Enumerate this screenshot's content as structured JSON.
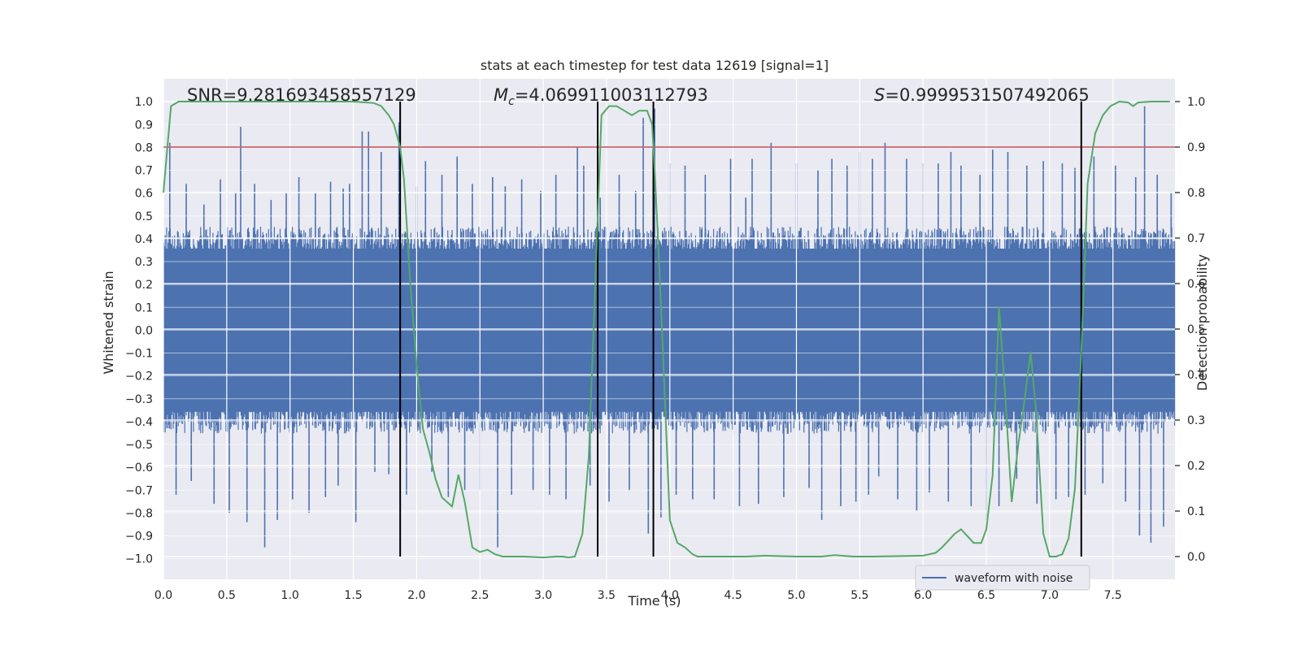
{
  "chart_data": {
    "type": "line",
    "title": "stats at each timestep for test data 12619 [signal=1]",
    "xlabel": "Time (s)",
    "ylabel_left": "Whitened strain",
    "ylabel_right": "Detection probability",
    "xlim": [
      0.0,
      7.99
    ],
    "ylim_left": [
      -1.09,
      1.1
    ],
    "ylim_right": [
      -0.05,
      1.05
    ],
    "grid": true,
    "x_ticks": [
      "0.0",
      "0.5",
      "1.0",
      "1.5",
      "2.0",
      "2.5",
      "3.0",
      "3.5",
      "4.0",
      "4.5",
      "5.0",
      "5.5",
      "6.0",
      "6.5",
      "7.0",
      "7.5"
    ],
    "y_ticks_left": [
      "-1.0",
      "-0.9",
      "-0.8",
      "-0.7",
      "-0.6",
      "-0.5",
      "-0.4",
      "-0.3",
      "-0.2",
      "-0.1",
      "0.0",
      "0.1",
      "0.2",
      "0.3",
      "0.4",
      "0.5",
      "0.6",
      "0.7",
      "0.8",
      "0.9",
      "1.0"
    ],
    "y_ticks_right": [
      "0.0",
      "0.1",
      "0.2",
      "0.3",
      "0.4",
      "0.5",
      "0.6",
      "0.7",
      "0.8",
      "0.9",
      "1.0"
    ],
    "annotations": {
      "snr": "SNR=9.281693458557129",
      "mc_symbol": "M",
      "mc_subscript": "c",
      "mc_value": "=4.069911003112793",
      "s_symbol": "S",
      "s_value": "=0.9999531507492065"
    },
    "legend": {
      "label": "waveform with noise",
      "position": "lower-right"
    },
    "threshold": {
      "value": 0.9,
      "axis": "right",
      "color": "#c44e52"
    },
    "vertical_lines": [
      1.87,
      3.43,
      3.87,
      7.25
    ],
    "waveform": {
      "name": "waveform with noise",
      "color": "#4c72b0",
      "core_amplitude": 0.42,
      "spikes": [
        [
          0.05,
          0.82
        ],
        [
          0.1,
          -0.72
        ],
        [
          0.18,
          0.64
        ],
        [
          0.22,
          -0.66
        ],
        [
          0.32,
          0.55
        ],
        [
          0.4,
          -0.76
        ],
        [
          0.45,
          0.66
        ],
        [
          0.52,
          -0.8
        ],
        [
          0.57,
          0.6
        ],
        [
          0.61,
          0.89
        ],
        [
          0.66,
          -0.84
        ],
        [
          0.72,
          0.64
        ],
        [
          0.8,
          -0.95
        ],
        [
          0.85,
          0.57
        ],
        [
          0.9,
          -0.83
        ],
        [
          0.97,
          0.6
        ],
        [
          1.02,
          -0.74
        ],
        [
          1.07,
          0.67
        ],
        [
          1.15,
          -0.8
        ],
        [
          1.2,
          0.6
        ],
        [
          1.28,
          -0.73
        ],
        [
          1.32,
          0.65
        ],
        [
          1.38,
          -0.68
        ],
        [
          1.42,
          0.62
        ],
        [
          1.47,
          0.64
        ],
        [
          1.52,
          -0.84
        ],
        [
          1.57,
          0.87
        ],
        [
          1.62,
          0.87
        ],
        [
          1.67,
          -0.62
        ],
        [
          1.72,
          0.78
        ],
        [
          1.78,
          -0.63
        ],
        [
          1.86,
          0.91
        ],
        [
          1.92,
          -0.72
        ],
        [
          2.0,
          0.63
        ],
        [
          2.07,
          0.74
        ],
        [
          2.12,
          -0.62
        ],
        [
          2.2,
          0.68
        ],
        [
          2.25,
          -0.73
        ],
        [
          2.32,
          0.76
        ],
        [
          2.38,
          -0.7
        ],
        [
          2.44,
          0.64
        ],
        [
          2.5,
          -0.7
        ],
        [
          2.6,
          0.67
        ],
        [
          2.64,
          -0.95
        ],
        [
          2.7,
          0.63
        ],
        [
          2.75,
          -0.72
        ],
        [
          2.83,
          0.66
        ],
        [
          2.92,
          -0.7
        ],
        [
          2.98,
          0.61
        ],
        [
          3.05,
          -0.72
        ],
        [
          3.1,
          0.68
        ],
        [
          3.18,
          -0.74
        ],
        [
          3.27,
          0.8
        ],
        [
          3.32,
          0.72
        ],
        [
          3.37,
          -0.68
        ],
        [
          3.45,
          0.58
        ],
        [
          3.52,
          -0.75
        ],
        [
          3.6,
          0.68
        ],
        [
          3.68,
          -0.7
        ],
        [
          3.73,
          0.61
        ],
        [
          3.79,
          0.93
        ],
        [
          3.83,
          -0.89
        ],
        [
          3.88,
          0.97
        ],
        [
          3.93,
          -0.82
        ],
        [
          4.0,
          0.73
        ],
        [
          4.05,
          -0.72
        ],
        [
          4.12,
          0.72
        ],
        [
          4.18,
          -0.74
        ],
        [
          4.28,
          0.68
        ],
        [
          4.35,
          -0.74
        ],
        [
          4.48,
          0.75
        ],
        [
          4.55,
          -0.77
        ],
        [
          4.6,
          0.58
        ],
        [
          4.65,
          0.75
        ],
        [
          4.7,
          -0.76
        ],
        [
          4.8,
          0.82
        ],
        [
          4.9,
          -0.73
        ],
        [
          5.0,
          0.73
        ],
        [
          5.1,
          -0.69
        ],
        [
          5.17,
          0.7
        ],
        [
          5.2,
          -0.83
        ],
        [
          5.28,
          0.75
        ],
        [
          5.35,
          -0.77
        ],
        [
          5.4,
          0.72
        ],
        [
          5.47,
          -0.75
        ],
        [
          5.5,
          0.78
        ],
        [
          5.57,
          -0.72
        ],
        [
          5.6,
          0.75
        ],
        [
          5.65,
          -0.64
        ],
        [
          5.7,
          0.82
        ],
        [
          5.8,
          -0.74
        ],
        [
          5.87,
          0.75
        ],
        [
          5.95,
          -0.79
        ],
        [
          6.0,
          0.73
        ],
        [
          6.05,
          -0.71
        ],
        [
          6.12,
          0.73
        ],
        [
          6.2,
          -0.75
        ],
        [
          6.22,
          0.78
        ],
        [
          6.3,
          0.72
        ],
        [
          6.38,
          -0.77
        ],
        [
          6.45,
          0.68
        ],
        [
          6.5,
          -0.83
        ],
        [
          6.55,
          0.79
        ],
        [
          6.6,
          -0.77
        ],
        [
          6.67,
          0.78
        ],
        [
          6.74,
          -0.65
        ],
        [
          6.82,
          0.72
        ],
        [
          6.9,
          -0.76
        ],
        [
          6.95,
          0.74
        ],
        [
          7.05,
          -0.74
        ],
        [
          7.1,
          0.73
        ],
        [
          7.15,
          -0.73
        ],
        [
          7.2,
          0.71
        ],
        [
          7.28,
          -0.72
        ],
        [
          7.35,
          0.76
        ],
        [
          7.42,
          -0.67
        ],
        [
          7.52,
          0.72
        ],
        [
          7.6,
          -0.75
        ],
        [
          7.68,
          0.67
        ],
        [
          7.71,
          -0.9
        ],
        [
          7.75,
          0.98
        ],
        [
          7.8,
          -0.93
        ],
        [
          7.85,
          0.68
        ],
        [
          7.9,
          -0.86
        ],
        [
          7.96,
          0.6
        ]
      ]
    },
    "probability": {
      "name": "detection probability",
      "color": "#55a868",
      "x": [
        0.0,
        0.06,
        0.12,
        0.2,
        0.5,
        1.0,
        1.5,
        1.66,
        1.72,
        1.78,
        1.82,
        1.87,
        1.9,
        1.95,
        2.0,
        2.05,
        2.1,
        2.15,
        2.2,
        2.28,
        2.33,
        2.38,
        2.44,
        2.5,
        2.56,
        2.62,
        2.68,
        2.75,
        2.85,
        3.0,
        3.1,
        3.15,
        3.2,
        3.25,
        3.31,
        3.36,
        3.4,
        3.46,
        3.52,
        3.58,
        3.64,
        3.7,
        3.76,
        3.82,
        3.86,
        3.88,
        3.92,
        3.96,
        4.0,
        4.06,
        4.12,
        4.18,
        4.22,
        4.3,
        4.6,
        4.75,
        5.0,
        5.2,
        5.3,
        5.45,
        5.6,
        6.0,
        6.1,
        6.15,
        6.2,
        6.25,
        6.3,
        6.35,
        6.4,
        6.46,
        6.5,
        6.55,
        6.6,
        6.65,
        6.7,
        6.75,
        6.8,
        6.85,
        6.89,
        6.95,
        7.0,
        7.05,
        7.1,
        7.15,
        7.2,
        7.25,
        7.3,
        7.36,
        7.42,
        7.48,
        7.55,
        7.62,
        7.66,
        7.7,
        7.8,
        7.95
      ],
      "y": [
        0.8,
        0.99,
        1.0,
        1.0,
        1.0,
        1.0,
        1.0,
        0.997,
        0.99,
        0.97,
        0.95,
        0.9,
        0.83,
        0.6,
        0.42,
        0.28,
        0.23,
        0.17,
        0.13,
        0.11,
        0.18,
        0.12,
        0.02,
        0.01,
        0.015,
        0.005,
        0.0,
        0.0,
        0.0,
        -0.002,
        0.0,
        0.0,
        -0.002,
        0.0,
        0.05,
        0.22,
        0.52,
        0.97,
        0.99,
        0.99,
        0.98,
        0.97,
        0.98,
        0.98,
        0.95,
        0.85,
        0.62,
        0.35,
        0.08,
        0.03,
        0.02,
        0.005,
        0.0,
        0.0,
        0.0,
        0.002,
        0.0,
        0.0,
        0.003,
        0.0,
        0.0,
        0.002,
        0.008,
        0.02,
        0.035,
        0.05,
        0.06,
        0.045,
        0.03,
        0.03,
        0.06,
        0.18,
        0.55,
        0.35,
        0.12,
        0.24,
        0.34,
        0.45,
        0.33,
        0.05,
        0.0,
        0.0,
        0.005,
        0.04,
        0.15,
        0.45,
        0.82,
        0.93,
        0.97,
        0.99,
        1.0,
        0.998,
        0.99,
        0.998,
        1.0,
        1.0
      ]
    }
  }
}
